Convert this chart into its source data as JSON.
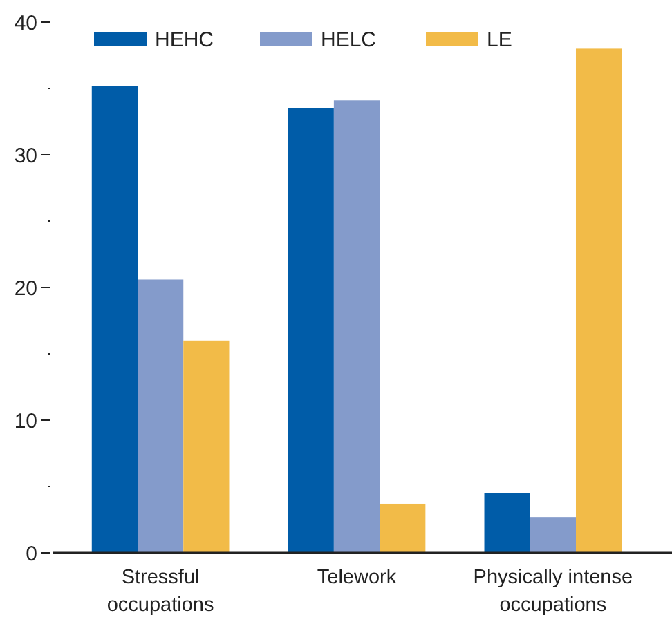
{
  "chart_data": {
    "type": "bar",
    "categories": [
      "Stressful occupations",
      "Telework",
      "Physically intense occupations"
    ],
    "series": [
      {
        "name": "HEHC",
        "color": "#005ca8",
        "values": [
          35.2,
          33.5,
          4.5
        ]
      },
      {
        "name": "HELC",
        "color": "#849bcb",
        "values": [
          20.6,
          34.1,
          2.7
        ]
      },
      {
        "name": "LE",
        "color": "#f2bb48",
        "values": [
          16.0,
          3.7,
          38.0
        ]
      }
    ],
    "ylim": [
      0,
      40
    ],
    "yticks": [
      0,
      {
        "value": 5,
        "label": null
      },
      10,
      {
        "value": 15,
        "label": null
      },
      20,
      {
        "value": 25,
        "label": null
      },
      30,
      {
        "value": 35,
        "label": null
      },
      40
    ],
    "legend": "top",
    "grid": false
  }
}
